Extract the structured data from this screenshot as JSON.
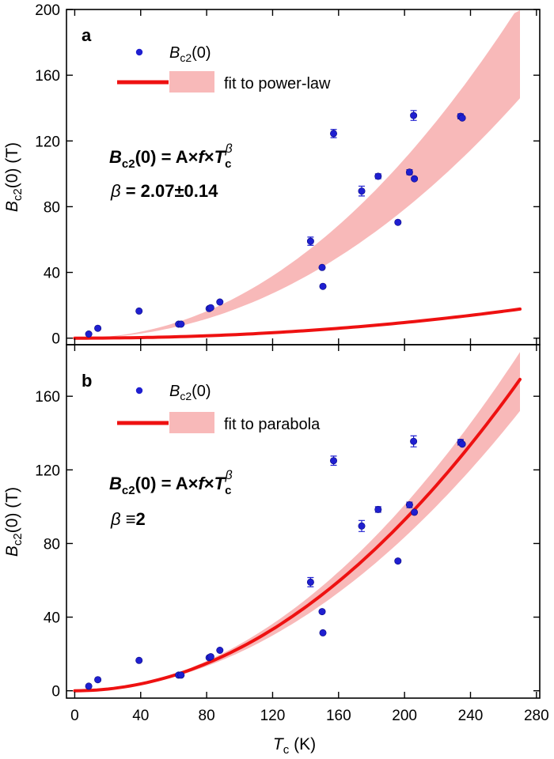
{
  "figure": {
    "x_axis_title": {
      "main": "T",
      "sub": "c",
      "unit": " (K)"
    },
    "y_axis_title": {
      "main": "B",
      "sub": "c2",
      "rest": "(0) (T)"
    },
    "x_ticks": [
      0,
      40,
      80,
      120,
      160,
      200,
      240,
      280
    ]
  },
  "chart_data": [
    {
      "type": "scatter",
      "panel": "a",
      "xlim": [
        -5,
        282
      ],
      "ylim": [
        -4,
        200
      ],
      "y_ticks": [
        0,
        40,
        80,
        120,
        160,
        200
      ],
      "grid": false,
      "legend_placement": "top-left",
      "legend": {
        "points_label": {
          "main": "B",
          "sub": "c2",
          "rest": "(0)"
        },
        "fit_label": "fit to power-law"
      },
      "formula": {
        "lhs_main": "B",
        "lhs_sub": "c2",
        "lhs_rest": "(0) = A×",
        "f": "f",
        "times": "×",
        "tc_main": "T",
        "tc_sub": "c",
        "exp": "β"
      },
      "beta_line": {
        "symbol": "β",
        "value": " = 2.07±0.14"
      },
      "series": [
        {
          "name": "Bc2(0)",
          "color": "#1f1fd0",
          "points": [
            {
              "x": 8.5,
              "y": 2.5,
              "err": 0
            },
            {
              "x": 14,
              "y": 6,
              "err": 0
            },
            {
              "x": 39,
              "y": 16.5,
              "err": 0
            },
            {
              "x": 63,
              "y": 8.5,
              "err": 0
            },
            {
              "x": 64.5,
              "y": 8.5,
              "err": 0
            },
            {
              "x": 81.5,
              "y": 18,
              "err": 0
            },
            {
              "x": 82.5,
              "y": 18.5,
              "err": 0
            },
            {
              "x": 88,
              "y": 22,
              "err": 0
            },
            {
              "x": 143,
              "y": 59,
              "err": 2.5
            },
            {
              "x": 150,
              "y": 43,
              "err": 0
            },
            {
              "x": 150.5,
              "y": 31.5,
              "err": 0
            },
            {
              "x": 157,
              "y": 124.5,
              "err": 2.5
            },
            {
              "x": 174,
              "y": 89.5,
              "err": 3
            },
            {
              "x": 184,
              "y": 98.5,
              "err": 1.5
            },
            {
              "x": 196,
              "y": 70.5,
              "err": 0
            },
            {
              "x": 203,
              "y": 101,
              "err": 1.5
            },
            {
              "x": 205.5,
              "y": 135.5,
              "err": 3
            },
            {
              "x": 206,
              "y": 97,
              "err": 0
            },
            {
              "x": 234,
              "y": 135,
              "err": 1.5
            },
            {
              "x": 235,
              "y": 134,
              "err": 0
            }
          ]
        },
        {
          "name": "fit to power-law",
          "color": "#ee1111",
          "band_color": "#f8b9b9",
          "model": "power-law",
          "coefficient": 0.000164,
          "exponent": 2.07,
          "x_range": [
            0,
            270
          ],
          "band_lower_at_max": 146,
          "band_upper_at_max": 203
        }
      ]
    },
    {
      "type": "scatter",
      "panel": "b",
      "xlim": [
        -5,
        282
      ],
      "ylim": [
        -4,
        188
      ],
      "y_ticks": [
        0,
        40,
        80,
        120,
        160
      ],
      "grid": false,
      "legend_placement": "top-left",
      "legend": {
        "points_label": {
          "main": "B",
          "sub": "c2",
          "rest": "(0)"
        },
        "fit_label": "fit to parabola"
      },
      "formula": {
        "lhs_main": "B",
        "lhs_sub": "c2",
        "lhs_rest": "(0) = A×",
        "f": "f",
        "times": "×",
        "tc_main": "T",
        "tc_sub": "c",
        "exp": "β"
      },
      "beta_line": {
        "symbol": "β",
        "value": " ≡2"
      },
      "series": [
        {
          "name": "Bc2(0)",
          "color": "#1f1fd0",
          "points": [
            {
              "x": 8.5,
              "y": 2.5,
              "err": 0
            },
            {
              "x": 14,
              "y": 6,
              "err": 0
            },
            {
              "x": 39,
              "y": 16.5,
              "err": 0
            },
            {
              "x": 63,
              "y": 8.5,
              "err": 0
            },
            {
              "x": 64.5,
              "y": 8.5,
              "err": 0
            },
            {
              "x": 81.5,
              "y": 18,
              "err": 0
            },
            {
              "x": 82.5,
              "y": 18.5,
              "err": 0
            },
            {
              "x": 88,
              "y": 22,
              "err": 0
            },
            {
              "x": 143,
              "y": 59,
              "err": 2.5
            },
            {
              "x": 150,
              "y": 43,
              "err": 0
            },
            {
              "x": 150.5,
              "y": 31.5,
              "err": 0
            },
            {
              "x": 157,
              "y": 125,
              "err": 2.5
            },
            {
              "x": 174,
              "y": 89.5,
              "err": 3
            },
            {
              "x": 184,
              "y": 98.5,
              "err": 1.5
            },
            {
              "x": 196,
              "y": 70.5,
              "err": 0
            },
            {
              "x": 203,
              "y": 101,
              "err": 1.5
            },
            {
              "x": 205.5,
              "y": 135.5,
              "err": 3
            },
            {
              "x": 206,
              "y": 97,
              "err": 0
            },
            {
              "x": 234,
              "y": 135,
              "err": 1.5
            },
            {
              "x": 235,
              "y": 134,
              "err": 0
            }
          ]
        },
        {
          "name": "fit to parabola",
          "color": "#ee1111",
          "band_color": "#f8b9b9",
          "model": "parabola",
          "coefficient": 0.00232,
          "exponent": 2,
          "x_range": [
            0,
            270
          ],
          "band_lower_at_max": 152,
          "band_upper_at_max": 184
        }
      ]
    }
  ]
}
